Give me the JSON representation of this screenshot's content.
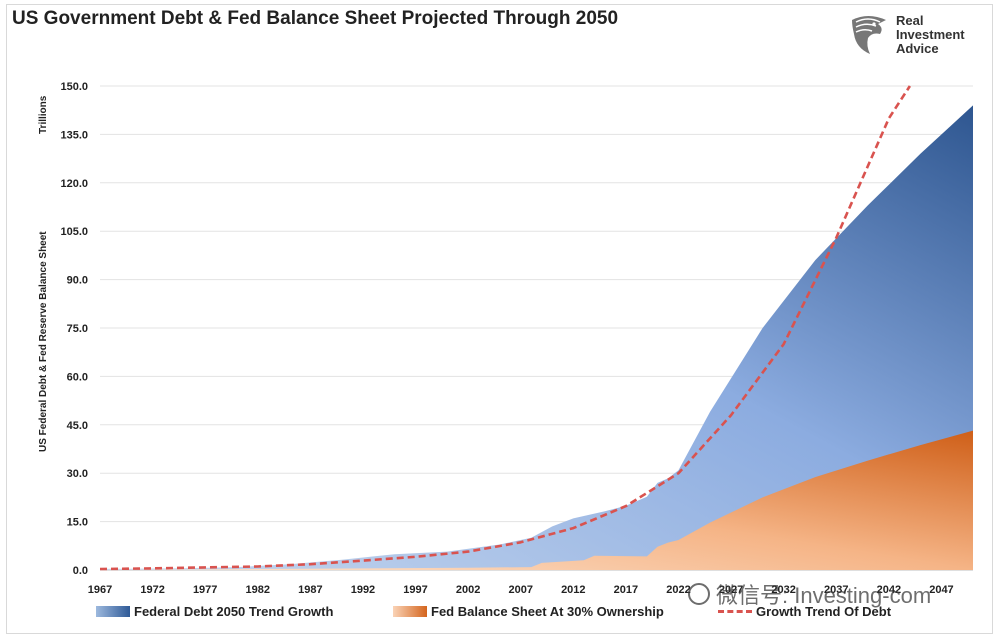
{
  "title": "US Government Debt & Fed Balance Sheet Projected Through 2050",
  "logo": {
    "line1": "Real",
    "line2": "Investment",
    "line3": "Advice",
    "icon": "eagle-head-icon"
  },
  "watermark": "微信号: Investing-com",
  "chart_data": {
    "type": "area",
    "ylabel_top": "Trillions",
    "ylabel": "US Federal Debt & Fed Reserve Balance Sheet",
    "ylim": [
      0,
      150
    ],
    "yticks": [
      "0.0",
      "15.0",
      "30.0",
      "45.0",
      "60.0",
      "75.0",
      "90.0",
      "105.0",
      "120.0",
      "135.0",
      "150.0"
    ],
    "xlim": [
      1967,
      2050
    ],
    "xticks": [
      "1967",
      "1972",
      "1977",
      "1982",
      "1987",
      "1992",
      "1997",
      "2002",
      "2007",
      "2012",
      "2017",
      "2022",
      "2027",
      "2032",
      "2037",
      "2042",
      "2047"
    ],
    "grid": true,
    "legend_position": "bottom",
    "series": [
      {
        "name": "Federal Debt 2050 Trend Growth",
        "color_start": "#b8cce8",
        "color_end": "#2f5a97",
        "x": [
          1967,
          1970,
          1975,
          1980,
          1985,
          1990,
          1995,
          2000,
          2005,
          2008,
          2010,
          2012,
          2015,
          2017,
          2019,
          2020,
          2021,
          2022,
          2025,
          2030,
          2035,
          2040,
          2045,
          2050
        ],
        "values": [
          0.33,
          0.38,
          0.55,
          0.9,
          1.8,
          3.2,
          4.9,
          5.7,
          7.9,
          10.0,
          13.5,
          16.0,
          18.2,
          19.9,
          22.7,
          27.0,
          28.4,
          30.9,
          49.0,
          75.0,
          96.0,
          113.0,
          129.0,
          144.0
        ]
      },
      {
        "name": "Fed Balance Sheet At 30% Ownership",
        "color_start": "#fde3cf",
        "color_end": "#d4651e",
        "x": [
          1967,
          2002,
          2008,
          2009,
          2013,
          2014,
          2019,
          2020,
          2021,
          2022,
          2025,
          2030,
          2035,
          2040,
          2045,
          2050
        ],
        "values": [
          0.0,
          0.7,
          0.9,
          2.2,
          3.0,
          4.4,
          4.2,
          7.2,
          8.5,
          9.3,
          14.7,
          22.5,
          28.8,
          33.9,
          38.7,
          43.2
        ]
      },
      {
        "name": "Growth Trend Of Debt",
        "color": "#d9534f",
        "style": "dashed",
        "x": [
          1967,
          1972,
          1977,
          1982,
          1987,
          1992,
          1997,
          2002,
          2007,
          2012,
          2017,
          2022,
          2027,
          2032,
          2037,
          2042,
          2044
        ],
        "values": [
          0.3,
          0.5,
          0.8,
          1.1,
          1.8,
          2.9,
          4.1,
          5.7,
          8.6,
          13.0,
          19.8,
          30.0,
          48.0,
          70.0,
          103.0,
          140.0,
          150.0
        ]
      }
    ]
  }
}
